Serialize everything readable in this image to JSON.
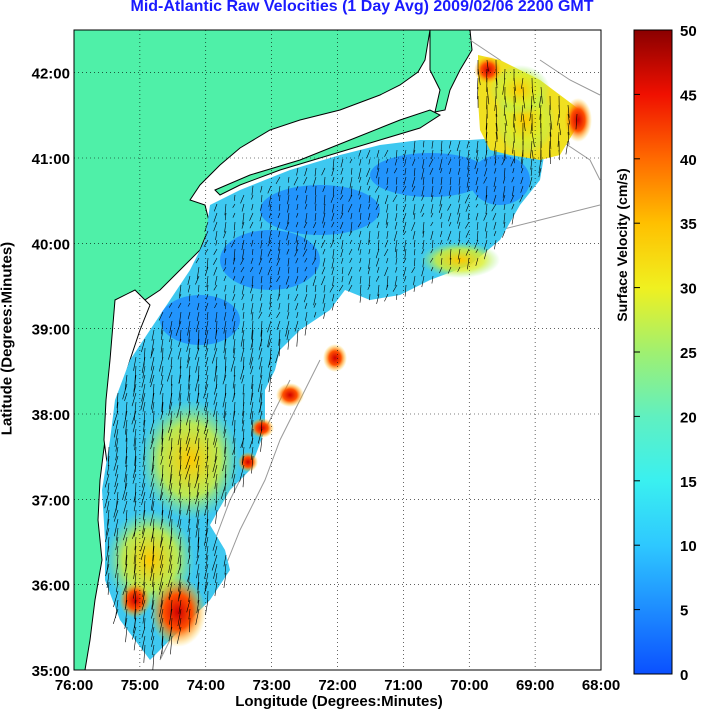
{
  "title": "Mid-Atlantic Raw Velocities (1 Day Avg) 2009/02/06 2200 GMT",
  "x_axis_label": "Longitude (Degrees:Minutes)",
  "y_axis_label": "Latitude (Degrees:Minutes)",
  "colorbar_label": "Surface Velocity (cm/s)",
  "x_ticks": [
    "76:00",
    "75:00",
    "74:00",
    "73:00",
    "72:00",
    "71:00",
    "70:00",
    "69:00",
    "68:00"
  ],
  "y_ticks": [
    "42:00",
    "41:00",
    "40:00",
    "39:00",
    "38:00",
    "37:00",
    "36:00",
    "35:00"
  ],
  "colorbar_ticks": [
    "50",
    "45",
    "40",
    "35",
    "30",
    "25",
    "20",
    "15",
    "10",
    "5",
    "0"
  ],
  "colors": {
    "land": "#4ff0a8",
    "title": "#1a1aff",
    "colormap": [
      "#0a55ff",
      "#1e8cff",
      "#2ec8ff",
      "#3af0f0",
      "#60f0c0",
      "#a0f070",
      "#e8f020",
      "#ffc000",
      "#ff7a00",
      "#ff2a00",
      "#c00000",
      "#7a0000"
    ]
  },
  "chart_data": {
    "type": "map",
    "title": "Mid-Atlantic Raw Velocities (1 Day Avg) 2009/02/06 2200 GMT",
    "xlabel": "Longitude (Degrees:Minutes)",
    "ylabel": "Latitude (Degrees:Minutes)",
    "xlim": [
      -76,
      -68
    ],
    "ylim": [
      35,
      42.5
    ],
    "colorbar": {
      "label": "Surface Velocity (cm/s)",
      "range": [
        0,
        50
      ]
    },
    "grid": true
  }
}
